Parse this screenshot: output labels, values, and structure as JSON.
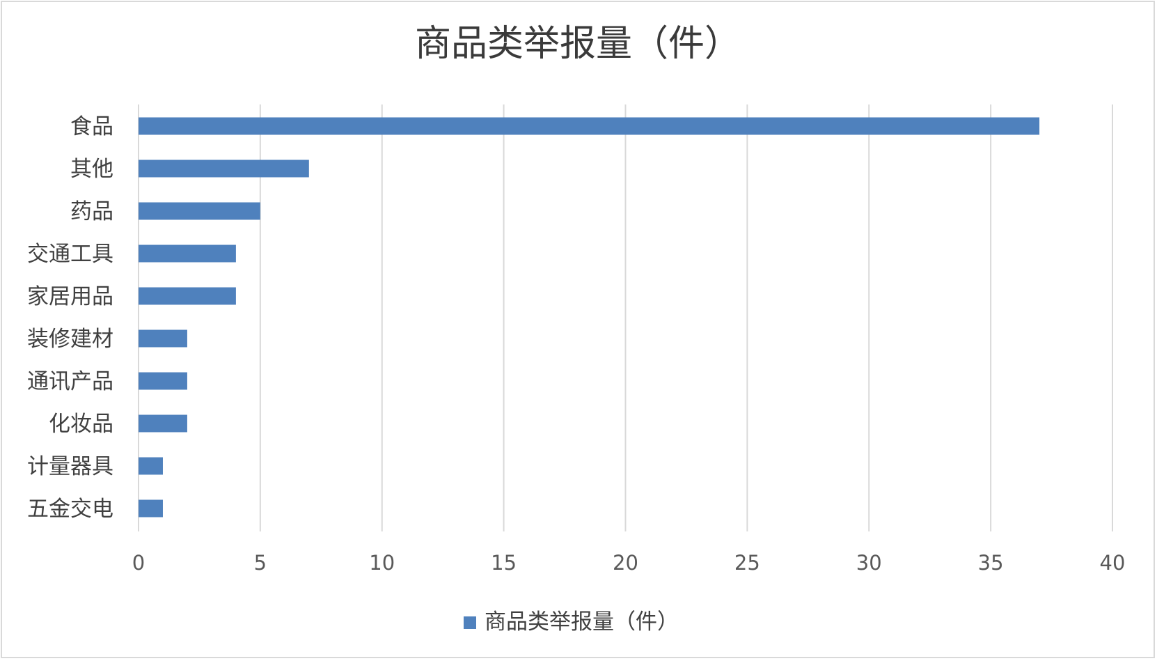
{
  "chart_data": {
    "type": "bar",
    "orientation": "horizontal",
    "title": "商品类举报量（件）",
    "categories": [
      "食品",
      "其他",
      "药品",
      "交通工具",
      "家居用品",
      "装修建材",
      "通讯产品",
      "化妆品",
      "计量器具",
      "五金交电"
    ],
    "series": [
      {
        "name": "商品类举报量（件）",
        "values": [
          37,
          7,
          5,
          4,
          4,
          2,
          2,
          2,
          1,
          1
        ],
        "color": "#4f81bd"
      }
    ],
    "xlim": [
      0,
      40
    ],
    "xticks": [
      0,
      5,
      10,
      15,
      20,
      25,
      30,
      35,
      40
    ],
    "grid": "vertical",
    "legend": "bottom"
  }
}
